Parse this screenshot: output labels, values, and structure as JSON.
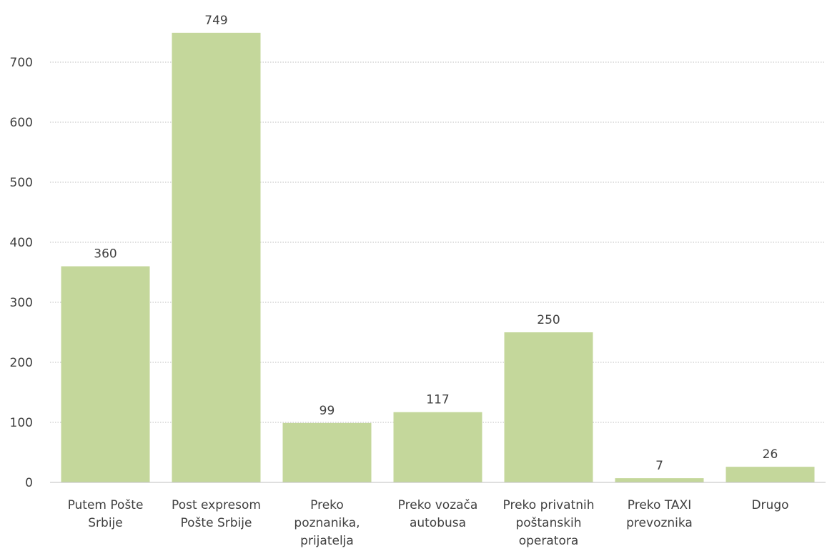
{
  "chart_data": {
    "type": "bar",
    "categories": [
      [
        "Putem Pošte",
        "Srbije"
      ],
      [
        "Post expresom",
        "Pošte Srbije"
      ],
      [
        "Preko",
        "poznanika,",
        "prijatelja"
      ],
      [
        "Preko vozača",
        "autobusa"
      ],
      [
        "Preko privatnih",
        "poštanskih",
        "operatora"
      ],
      [
        "Preko TAXI",
        "prevoznika"
      ],
      [
        "Drugo"
      ]
    ],
    "values": [
      360,
      749,
      99,
      117,
      250,
      7,
      26
    ],
    "title": "",
    "xlabel": "",
    "ylabel": "",
    "ylim": [
      0,
      750
    ],
    "yticks": [
      0,
      100,
      200,
      300,
      400,
      500,
      600,
      700
    ],
    "grid": true,
    "bar_color": "#c4d79b",
    "grid_color": "#bfbfbf",
    "axis_color": "#bfbfbf",
    "text_color": "#404040"
  }
}
